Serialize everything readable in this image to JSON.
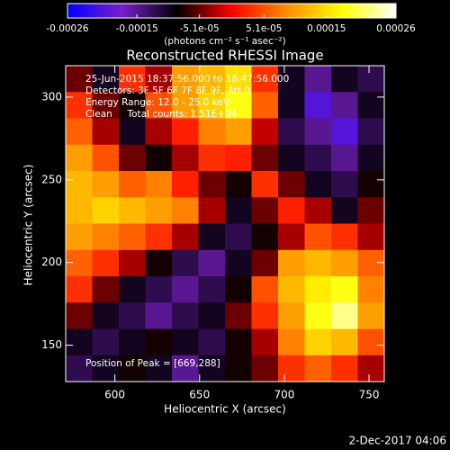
{
  "chart_data": {
    "type": "heatmap",
    "title": "Reconstructed RHESSI Image",
    "x_label": "Heliocentric X (arcsec)",
    "y_label": "Heliocentric Y (arcsec)",
    "colorbar_label": "(photons cm⁻² s⁻¹ asec⁻²)",
    "annotations": [
      "25-Jun-2015 18:37:56.000 to 18:47:56.000",
      "Detectors: 3F 5F 6F 7F 8F 9F, Att 0",
      "Energy Range: 12.0 - 25.0 keV",
      "Clean     Total counts: 1.51E+04",
      "Position of Peak = [669,288]"
    ],
    "footer": "2-Dec-2017 04:06",
    "xlim": [
      571,
      759
    ],
    "ylim": [
      128,
      319
    ],
    "xticks": [
      600,
      650,
      700,
      750
    ],
    "yticks": [
      150,
      200,
      250,
      300
    ],
    "clim": [
      -0.00026,
      0.00026
    ],
    "cticks": [
      -0.00026,
      -0.00015,
      {
        "value": -5.1e-05,
        "label": "-5.1e-05"
      },
      {
        "value": 5.1e-05,
        "label": "5.1e-05"
      },
      0.00015,
      0.00026
    ],
    "colormap": [
      "#0000ff",
      "#7a1fc8",
      "#000000",
      "#ff0000",
      "#ff8c00",
      "#ffff00",
      "#ffffff"
    ],
    "z": [
      [
        -5e-05,
        -0.0001,
        3e-05,
        -3e-05,
        0.0001,
        0.00012,
        0.00015,
        3e-05,
        -0.0001,
        -0.00015,
        -0.0001,
        -0.00012
      ],
      [
        3e-05,
        -5e-05,
        -8e-05,
        5e-05,
        0.0001,
        0.00014,
        0.00018,
        6e-05,
        -0.0001,
        -0.0002,
        -0.00015,
        -0.0001
      ],
      [
        6e-05,
        -3e-05,
        -0.0001,
        -3e-05,
        2e-05,
        8e-05,
        0.0001,
        -2e-05,
        -0.00012,
        -0.00015,
        -0.0002,
        -0.00012
      ],
      [
        0.0001,
        5e-05,
        -5e-05,
        -8e-05,
        -3e-05,
        3e-05,
        2e-05,
        -5e-05,
        -0.0001,
        -0.00012,
        -0.00015,
        -0.0001
      ],
      [
        0.00012,
        0.0001,
        6e-05,
        8e-05,
        2e-05,
        -5e-05,
        -8e-05,
        3e-05,
        -5e-05,
        -0.0001,
        -0.00012,
        -8e-05
      ],
      [
        0.00012,
        0.00014,
        0.00012,
        0.0001,
        8e-05,
        -3e-05,
        -0.0001,
        -5e-05,
        2e-05,
        -3e-05,
        -0.0001,
        -5e-05
      ],
      [
        0.0001,
        8e-05,
        6e-05,
        3e-05,
        -3e-05,
        -0.0001,
        -0.00012,
        -8e-05,
        -3e-05,
        5e-05,
        3e-05,
        -3e-05
      ],
      [
        6e-05,
        3e-05,
        -3e-05,
        -8e-05,
        -0.00012,
        -0.00015,
        -0.0001,
        -5e-05,
        0.0001,
        0.00012,
        0.0001,
        6e-05
      ],
      [
        3e-05,
        -5e-05,
        -0.0001,
        -0.00012,
        -0.00015,
        -0.00012,
        -8e-05,
        5e-05,
        0.00012,
        0.00016,
        0.00018,
        8e-05
      ],
      [
        -5e-05,
        -0.0001,
        -0.00012,
        -0.00015,
        -0.00012,
        -0.0001,
        -5e-05,
        3e-05,
        0.0001,
        0.00018,
        0.00022,
        0.0001
      ],
      [
        -0.0001,
        -0.00012,
        -0.0001,
        -8e-05,
        -0.0001,
        -0.00012,
        -8e-05,
        -3e-05,
        8e-05,
        0.00014,
        0.00012,
        5e-05
      ],
      [
        -0.00012,
        -0.0001,
        -8e-05,
        -0.0001,
        -0.00015,
        -0.0001,
        -8e-05,
        -5e-05,
        3e-05,
        6e-05,
        3e-05,
        -3e-05
      ]
    ]
  }
}
